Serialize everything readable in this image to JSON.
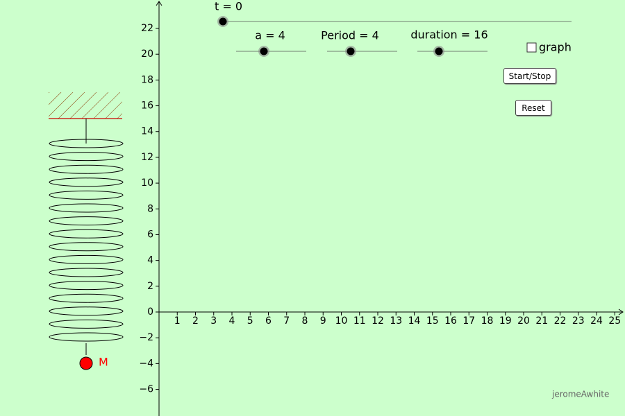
{
  "sliders": [
    {
      "label": "t = 0",
      "value": 0
    },
    {
      "label": "a = 4",
      "value": 4
    },
    {
      "label": "Period = 4",
      "value": 4
    },
    {
      "label": "duration = 16",
      "value": 16
    }
  ],
  "checkbox": {
    "label": "graph"
  },
  "buttons": [
    "Start/Stop",
    "Reset"
  ],
  "point_label": "M",
  "credit": "jeromeAwhite",
  "axes": {
    "xticks": [
      1,
      2,
      3,
      4,
      5,
      6,
      7,
      8,
      9,
      10,
      11,
      12,
      13,
      14,
      15,
      16,
      17,
      18,
      19,
      20,
      21,
      22,
      23,
      24,
      25
    ],
    "yticks": [
      {
        "value": -6,
        "label": "−6"
      },
      {
        "value": -4,
        "label": "−4"
      },
      {
        "value": -2,
        "label": "−2"
      },
      0,
      2,
      4,
      6,
      8,
      10,
      12,
      14,
      16,
      18,
      20,
      22
    ]
  }
}
